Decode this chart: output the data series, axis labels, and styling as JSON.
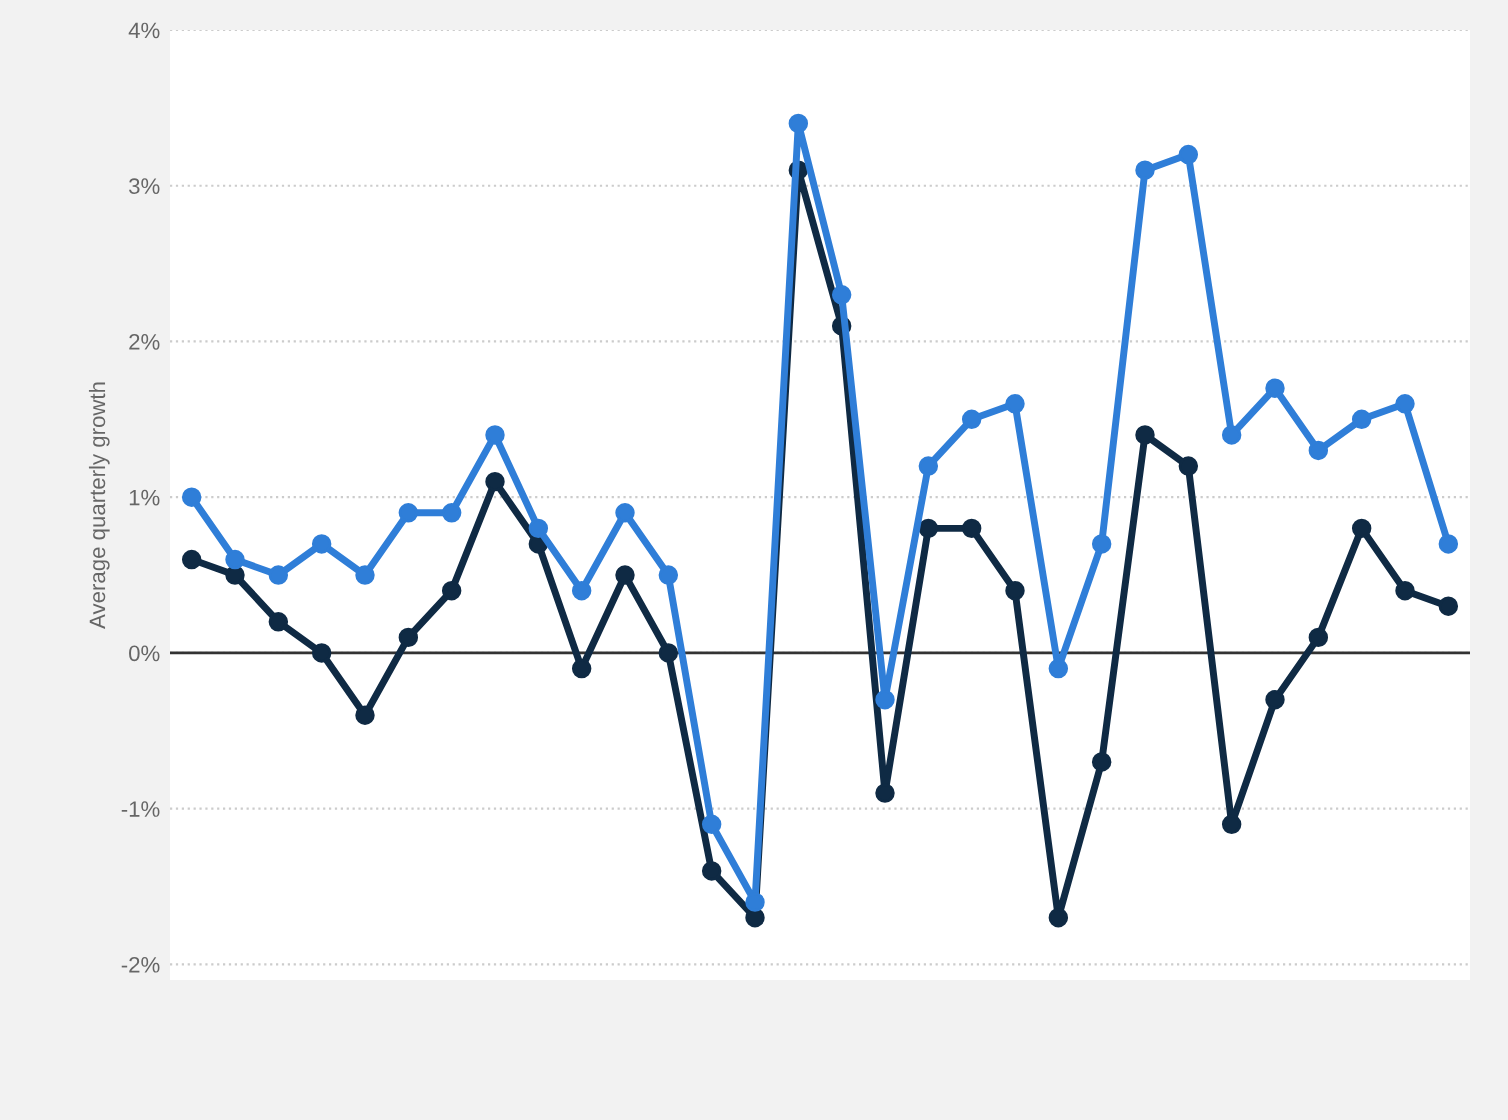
{
  "chart_data": {
    "type": "line",
    "ylabel": "Average quarterly growth",
    "categories": [
      null,
      null,
      null,
      null,
      null,
      null,
      null,
      null,
      null,
      null,
      null,
      null,
      null,
      null,
      null,
      null,
      null,
      null,
      null,
      null,
      null,
      null,
      null,
      null,
      null,
      null,
      null,
      null,
      null,
      null
    ],
    "series": [
      {
        "color": "#2f7ed8",
        "values": [
          1.0,
          0.6,
          0.5,
          0.7,
          0.5,
          0.9,
          0.9,
          1.4,
          0.8,
          0.4,
          0.9,
          0.5,
          -1.1,
          -1.6,
          3.4,
          2.3,
          -0.3,
          1.2,
          1.5,
          1.6,
          -0.1,
          0.7,
          3.1,
          3.2,
          1.4,
          1.7,
          1.3,
          1.5,
          1.6,
          0.7
        ]
      },
      {
        "color": "#0f2a44",
        "values": [
          0.6,
          0.5,
          0.2,
          0.0,
          -0.4,
          0.1,
          0.4,
          1.1,
          0.7,
          -0.1,
          0.5,
          0.0,
          -1.4,
          -1.7,
          3.1,
          2.1,
          -0.9,
          0.8,
          0.8,
          0.4,
          -1.7,
          -0.7,
          1.4,
          1.2,
          -1.1,
          -0.3,
          0.1,
          0.8,
          0.4,
          0.3
        ]
      }
    ],
    "ylim": [
      -2.1,
      4
    ],
    "yticks": [
      {
        "value": -2,
        "label": "-2%"
      },
      {
        "value": -1,
        "label": "-1%"
      },
      {
        "value": 0,
        "label": "0%"
      },
      {
        "value": 1,
        "label": "1%"
      },
      {
        "value": 2,
        "label": "2%"
      },
      {
        "value": 3,
        "label": "3%"
      },
      {
        "value": 4,
        "label": "4%"
      }
    ],
    "ref_lines": [
      {
        "axis": "y",
        "value": 0,
        "label": null,
        "color": "#333333",
        "line_style": "solid"
      }
    ],
    "grid": "y",
    "marker": "circle",
    "line_style": "solid"
  }
}
